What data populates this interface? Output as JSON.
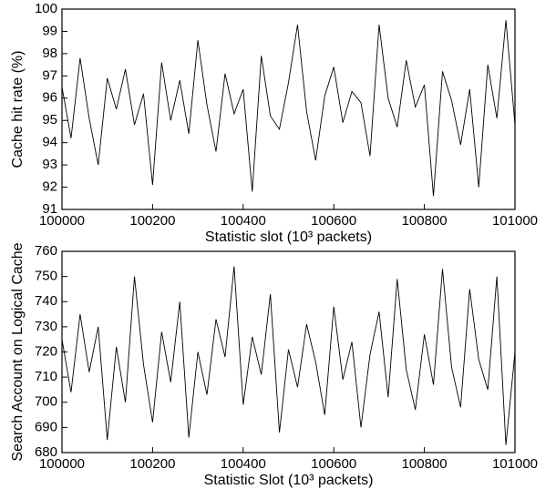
{
  "chart_data": [
    {
      "type": "line",
      "x_label": "Statistic slot (10³ packets)",
      "y_label": "Cache hit rate (%)",
      "color": "#000000",
      "xlim": [
        100000,
        101000
      ],
      "xticks": [
        100000,
        100200,
        100400,
        100600,
        100800,
        101000
      ],
      "ylim": [
        91,
        100
      ],
      "yticks": [
        91,
        92,
        93,
        94,
        95,
        96,
        97,
        98,
        99,
        100
      ],
      "x": [
        100000,
        100020,
        100040,
        100060,
        100080,
        100100,
        100120,
        100140,
        100160,
        100180,
        100200,
        100220,
        100240,
        100260,
        100280,
        100300,
        100320,
        100340,
        100360,
        100380,
        100400,
        100420,
        100440,
        100460,
        100480,
        100500,
        100520,
        100540,
        100560,
        100580,
        100600,
        100620,
        100640,
        100660,
        100680,
        100700,
        100720,
        100740,
        100760,
        100780,
        100800,
        100820,
        100840,
        100860,
        100880,
        100900,
        100920,
        100940,
        100960,
        100980,
        101000
      ],
      "values": [
        96.5,
        94.2,
        97.8,
        95.1,
        93.0,
        96.9,
        95.5,
        97.3,
        94.8,
        96.2,
        92.1,
        97.6,
        95.0,
        96.8,
        94.4,
        98.6,
        95.7,
        93.6,
        97.1,
        95.3,
        96.4,
        91.8,
        97.9,
        95.2,
        94.6,
        96.7,
        99.3,
        95.4,
        93.2,
        96.1,
        97.4,
        94.9,
        96.3,
        95.8,
        93.4,
        99.3,
        96.0,
        94.7,
        97.7,
        95.6,
        96.6,
        91.6,
        97.2,
        95.9,
        93.9,
        96.4,
        92.0,
        97.5,
        95.1,
        99.5,
        94.8
      ]
    },
    {
      "type": "line",
      "x_label": "Statistic Slot (10³ packets)",
      "y_label": "Search Account on Logical Cache",
      "color": "#000000",
      "xlim": [
        100000,
        101000
      ],
      "xticks": [
        100000,
        100200,
        100400,
        100600,
        100800,
        101000
      ],
      "ylim": [
        680,
        760
      ],
      "yticks": [
        680,
        690,
        700,
        710,
        720,
        730,
        740,
        750,
        760
      ],
      "x": [
        100000,
        100020,
        100040,
        100060,
        100080,
        100100,
        100120,
        100140,
        100160,
        100180,
        100200,
        100220,
        100240,
        100260,
        100280,
        100300,
        100320,
        100340,
        100360,
        100380,
        100400,
        100420,
        100440,
        100460,
        100480,
        100500,
        100520,
        100540,
        100560,
        100580,
        100600,
        100620,
        100640,
        100660,
        100680,
        100700,
        100720,
        100740,
        100760,
        100780,
        100800,
        100820,
        100840,
        100860,
        100880,
        100900,
        100920,
        100940,
        100960,
        100980,
        101000
      ],
      "values": [
        725,
        704,
        735,
        712,
        730,
        685,
        722,
        700,
        750,
        715,
        692,
        728,
        708,
        740,
        686,
        720,
        703,
        733,
        718,
        754,
        699,
        726,
        711,
        743,
        688,
        721,
        706,
        731,
        716,
        695,
        738,
        709,
        724,
        690,
        719,
        736,
        702,
        749,
        713,
        697,
        727,
        707,
        753,
        714,
        698,
        745,
        717,
        705,
        750,
        683,
        720
      ]
    }
  ]
}
